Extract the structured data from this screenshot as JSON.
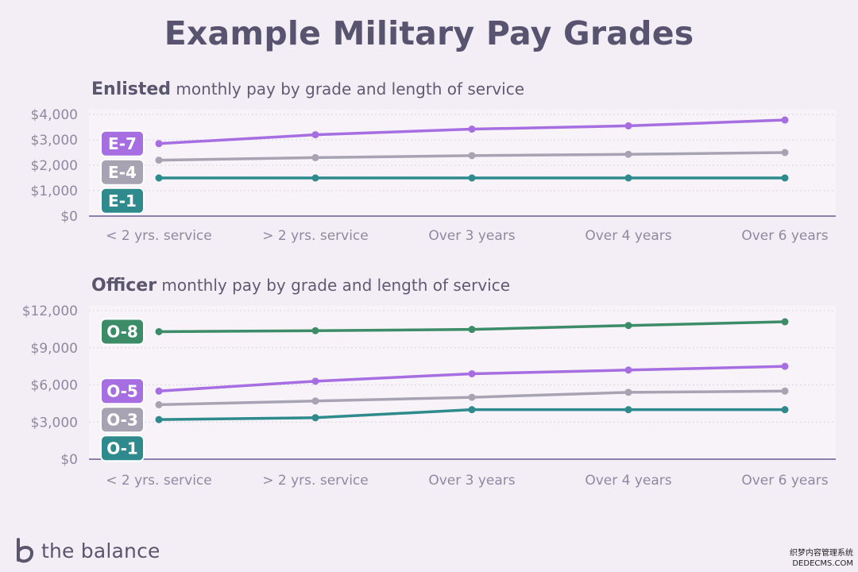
{
  "title": "Example Military Pay Grades",
  "brand": {
    "name": "the balance",
    "logo_icon": "the-balance-logo-icon"
  },
  "watermark": {
    "line1": "织梦内容管理系统",
    "line2": "DEDECMS.COM"
  },
  "colors": {
    "background": "#f3eef6",
    "axis": "#8a82ad",
    "grid": "#d9d4e0",
    "tick_text": "#8d89a0",
    "heading": "#5a566e"
  },
  "chart_data": [
    {
      "id": "enlisted",
      "type": "line",
      "title_bold": "Enlisted",
      "title_rest": "monthly pay by grade and length of service",
      "categories": [
        "< 2 yrs. service",
        "> 2 yrs. service",
        "Over 3 years",
        "Over 4 years",
        "Over 6 years"
      ],
      "y_ticks": [
        {
          "value": 0,
          "label": "$0"
        },
        {
          "value": 1000,
          "label": "$1,000"
        },
        {
          "value": 2000,
          "label": "$2,000"
        },
        {
          "value": 3000,
          "label": "$3,000"
        },
        {
          "value": 4000,
          "label": "$4,000"
        }
      ],
      "ylim": [
        0,
        4000
      ],
      "grid": true,
      "series": [
        {
          "name": "E-7",
          "color": "#a66ee0",
          "values": [
            2850,
            3200,
            3420,
            3550,
            3780
          ]
        },
        {
          "name": "E-4",
          "color": "#a7a3b3",
          "values": [
            2200,
            2300,
            2380,
            2430,
            2500
          ]
        },
        {
          "name": "E-1",
          "color": "#2e8a8c",
          "values": [
            1500,
            1500,
            1500,
            1500,
            1500
          ]
        }
      ]
    },
    {
      "id": "officer",
      "type": "line",
      "title_bold": "Officer",
      "title_rest": "monthly pay by grade and length of service",
      "categories": [
        "< 2 yrs. service",
        "> 2 yrs. service",
        "Over 3 years",
        "Over 4 years",
        "Over 6 years"
      ],
      "y_ticks": [
        {
          "value": 0,
          "label": "$0"
        },
        {
          "value": 3000,
          "label": "$3,000"
        },
        {
          "value": 6000,
          "label": "$6,000"
        },
        {
          "value": 9000,
          "label": "$9,000"
        },
        {
          "value": 12000,
          "label": "$12,000"
        }
      ],
      "ylim": [
        0,
        12000
      ],
      "grid": true,
      "series": [
        {
          "name": "O-8",
          "color": "#3d8c68",
          "values": [
            10300,
            10380,
            10480,
            10800,
            11100
          ]
        },
        {
          "name": "O-5",
          "color": "#a66ee0",
          "values": [
            5500,
            6300,
            6900,
            7200,
            7500
          ]
        },
        {
          "name": "O-3",
          "color": "#a7a3b3",
          "values": [
            4400,
            4700,
            5000,
            5400,
            5500
          ]
        },
        {
          "name": "O-1",
          "color": "#2e8a8c",
          "values": [
            3200,
            3350,
            4000,
            4000,
            4000
          ]
        }
      ]
    }
  ]
}
